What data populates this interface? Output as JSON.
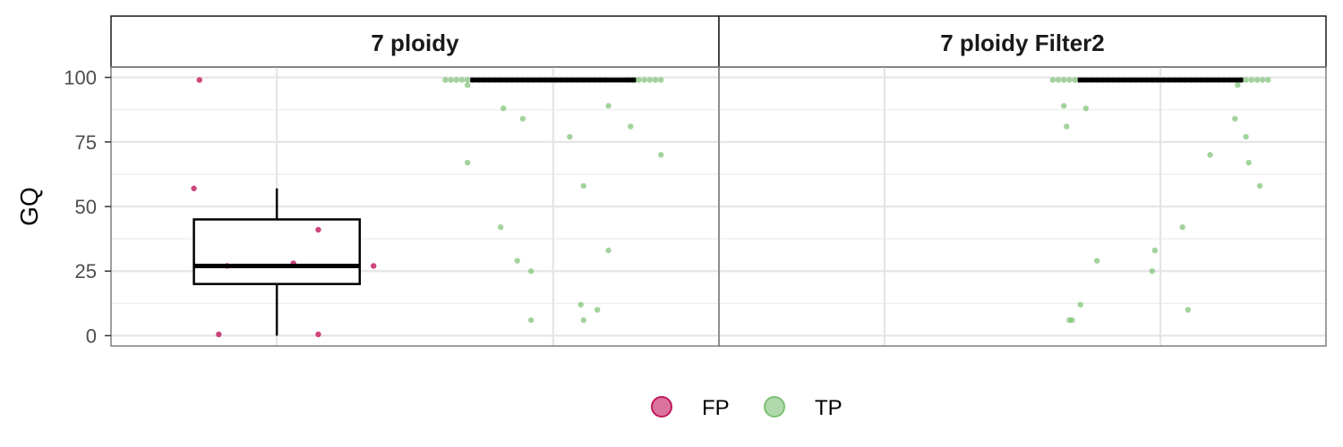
{
  "chart_data": {
    "type": "scatter",
    "subtype": "jittered strip plot with boxplots, faceted",
    "ylabel": "GQ",
    "xlabel": "",
    "ylim": [
      -4,
      104
    ],
    "yticks": [
      0,
      25,
      50,
      75,
      100
    ],
    "grid": true,
    "legend": {
      "placement": "bottom",
      "entries": [
        {
          "name": "FP",
          "color": "#c2185b"
        },
        {
          "name": "TP",
          "color": "#7cc073"
        }
      ]
    },
    "panels": [
      {
        "title": "7 ploidy",
        "groups": [
          {
            "name": "FP",
            "x_center": 1,
            "box": {
              "q1": 20,
              "median": 27,
              "q3": 45,
              "whisker_low": 0,
              "whisker_high": 57
            },
            "points": [
              [
                0.72,
                99
              ],
              [
                0.7,
                57
              ],
              [
                0.79,
                0.5
              ],
              [
                1.15,
                0.5
              ],
              [
                1.35,
                27
              ],
              [
                1.15,
                41
              ],
              [
                1.06,
                28
              ],
              [
                0.82,
                27
              ]
            ]
          },
          {
            "name": "TP",
            "x_center": 2,
            "box": {
              "q1": 99,
              "median": 99,
              "q3": 99,
              "whisker_low": 99,
              "whisker_high": 99
            },
            "points": [
              [
                1.61,
                99
              ],
              [
                1.63,
                99
              ],
              [
                1.65,
                99
              ],
              [
                1.67,
                99
              ],
              [
                1.69,
                99
              ],
              [
                1.71,
                99
              ],
              [
                1.73,
                99
              ],
              [
                1.75,
                99
              ],
              [
                1.77,
                99
              ],
              [
                1.79,
                99
              ],
              [
                1.81,
                99
              ],
              [
                1.83,
                99
              ],
              [
                1.85,
                99
              ],
              [
                1.87,
                99
              ],
              [
                1.89,
                99
              ],
              [
                1.91,
                99
              ],
              [
                1.93,
                99
              ],
              [
                1.95,
                99
              ],
              [
                1.97,
                99
              ],
              [
                1.99,
                99
              ],
              [
                2.01,
                99
              ],
              [
                2.03,
                99
              ],
              [
                2.05,
                99
              ],
              [
                2.07,
                99
              ],
              [
                2.09,
                99
              ],
              [
                2.11,
                99
              ],
              [
                2.13,
                99
              ],
              [
                2.15,
                99
              ],
              [
                2.17,
                99
              ],
              [
                2.19,
                99
              ],
              [
                2.27,
                99
              ],
              [
                2.29,
                99
              ],
              [
                2.31,
                99
              ],
              [
                2.33,
                99
              ],
              [
                2.35,
                99
              ],
              [
                2.37,
                99
              ],
              [
                2.39,
                99
              ],
              [
                1.69,
                97
              ],
              [
                1.82,
                88
              ],
              [
                1.89,
                84
              ],
              [
                2.2,
                89
              ],
              [
                2.28,
                81
              ],
              [
                2.06,
                77
              ],
              [
                2.39,
                70
              ],
              [
                1.69,
                67
              ],
              [
                2.11,
                58
              ],
              [
                1.81,
                42
              ],
              [
                2.2,
                33
              ],
              [
                1.87,
                29
              ],
              [
                1.92,
                25
              ],
              [
                2.1,
                12
              ],
              [
                2.16,
                10
              ],
              [
                1.92,
                6
              ],
              [
                2.11,
                6
              ]
            ]
          }
        ]
      },
      {
        "title": "7 ploidy Filter2",
        "groups": [
          {
            "name": "TP",
            "x_center": 2,
            "box": {
              "q1": 99,
              "median": 99,
              "q3": 99,
              "whisker_low": 99,
              "whisker_high": 99
            },
            "points": [
              [
                1.61,
                99
              ],
              [
                1.63,
                99
              ],
              [
                1.65,
                99
              ],
              [
                1.67,
                99
              ],
              [
                1.69,
                99
              ],
              [
                1.71,
                99
              ],
              [
                1.73,
                99
              ],
              [
                1.75,
                99
              ],
              [
                1.77,
                99
              ],
              [
                1.79,
                99
              ],
              [
                1.81,
                99
              ],
              [
                1.83,
                99
              ],
              [
                1.85,
                99
              ],
              [
                1.87,
                99
              ],
              [
                1.89,
                99
              ],
              [
                1.91,
                99
              ],
              [
                1.93,
                99
              ],
              [
                1.95,
                99
              ],
              [
                1.97,
                99
              ],
              [
                1.99,
                99
              ],
              [
                2.01,
                99
              ],
              [
                2.03,
                99
              ],
              [
                2.05,
                99
              ],
              [
                2.07,
                99
              ],
              [
                2.09,
                99
              ],
              [
                2.11,
                99
              ],
              [
                2.13,
                99
              ],
              [
                2.15,
                99
              ],
              [
                2.17,
                99
              ],
              [
                2.19,
                99
              ],
              [
                2.21,
                99
              ],
              [
                2.23,
                99
              ],
              [
                2.25,
                99
              ],
              [
                2.27,
                99
              ],
              [
                2.29,
                99
              ],
              [
                2.31,
                99
              ],
              [
                2.33,
                99
              ],
              [
                2.35,
                99
              ],
              [
                2.37,
                99
              ],
              [
                2.39,
                99
              ],
              [
                2.28,
                97
              ],
              [
                1.65,
                89
              ],
              [
                1.73,
                88
              ],
              [
                1.66,
                81
              ],
              [
                2.27,
                84
              ],
              [
                2.31,
                77
              ],
              [
                2.18,
                70
              ],
              [
                2.32,
                67
              ],
              [
                2.36,
                58
              ],
              [
                2.08,
                42
              ],
              [
                1.98,
                33
              ],
              [
                1.77,
                29
              ],
              [
                1.97,
                25
              ],
              [
                1.71,
                12
              ],
              [
                2.1,
                10
              ],
              [
                1.68,
                6
              ],
              [
                1.67,
                6
              ]
            ]
          }
        ]
      }
    ]
  }
}
